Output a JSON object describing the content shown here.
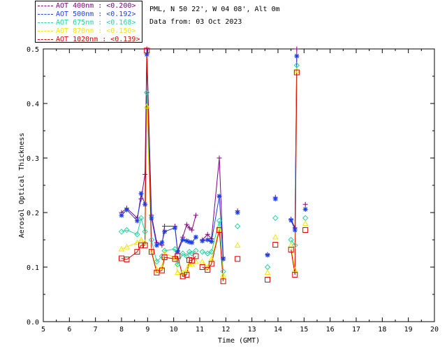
{
  "header": {
    "location": "PML, N 50 22', W 04 08', Alt 0m",
    "date_line": "Data from: 03 Oct 2023"
  },
  "legend": [
    {
      "label": "AOT  400nm : <0.200>",
      "color": "#800080"
    },
    {
      "label": "AOT  500nm : <0.192>",
      "color": "#1f3fe0"
    },
    {
      "label": "AOT  675nm : <0.168>",
      "color": "#22d4a0"
    },
    {
      "label": "AOT  870nm : <0.150>",
      "color": "#f2e600"
    },
    {
      "label": "AOT 1020nm : <0.139>",
      "color": "#e00000"
    }
  ],
  "chart_data": {
    "type": "line",
    "xlabel": "Time (GMT)",
    "ylabel": "Aerosol Optical Thickness",
    "xlim": [
      5,
      20
    ],
    "ylim": [
      0.0,
      0.5
    ],
    "xticks": [
      "5",
      "6",
      "7",
      "8",
      "9",
      "10",
      "11",
      "12",
      "13",
      "14",
      "15",
      "16",
      "17",
      "18",
      "19",
      "20"
    ],
    "yticks": [
      "0.0",
      "0.1",
      "0.2",
      "0.3",
      "0.4",
      "0.5"
    ],
    "grid": false,
    "legend_position": "top-left",
    "series": [
      {
        "name": "AOT  400nm : <0.200>",
        "marker": "plus",
        "color": "#800080",
        "segments": [
          [
            [
              8.0,
              0.2
            ],
            [
              8.2,
              0.208
            ],
            [
              8.6,
              0.19
            ],
            [
              8.75,
              0.225
            ],
            [
              8.9,
              0.27
            ],
            [
              8.97,
              0.5
            ],
            [
              9.15,
              0.195
            ],
            [
              9.35,
              0.145
            ],
            [
              9.55,
              0.14
            ],
            [
              9.65,
              0.175
            ],
            [
              10.05,
              0.175
            ],
            [
              10.15,
              0.13
            ],
            [
              10.35,
              0.155
            ],
            [
              10.5,
              0.178
            ],
            [
              10.6,
              0.172
            ],
            [
              10.7,
              0.168
            ],
            [
              10.85,
              0.195
            ]
          ],
          [
            [
              11.1,
              0.15
            ],
            [
              11.3,
              0.16
            ],
            [
              11.45,
              0.152
            ],
            [
              11.75,
              0.3
            ],
            [
              11.9,
              0.118
            ]
          ],
          [
            [
              12.45,
              0.203
            ]
          ],
          [
            [
              13.6,
              0.123
            ]
          ],
          [
            [
              13.9,
              0.228
            ]
          ],
          [
            [
              14.5,
              0.188
            ],
            [
              14.65,
              0.172
            ],
            [
              14.72,
              0.5
            ]
          ],
          [
            [
              15.05,
              0.215
            ]
          ]
        ]
      },
      {
        "name": "AOT  500nm : <0.192>",
        "marker": "star",
        "color": "#1f3fe0",
        "segments": [
          [
            [
              8.0,
              0.195
            ],
            [
              8.2,
              0.205
            ],
            [
              8.6,
              0.185
            ],
            [
              8.75,
              0.235
            ],
            [
              8.9,
              0.215
            ],
            [
              8.97,
              0.49
            ],
            [
              9.15,
              0.19
            ],
            [
              9.35,
              0.14
            ],
            [
              9.55,
              0.145
            ],
            [
              9.65,
              0.165
            ],
            [
              10.05,
              0.172
            ],
            [
              10.15,
              0.128
            ],
            [
              10.35,
              0.15
            ],
            [
              10.5,
              0.148
            ],
            [
              10.6,
              0.146
            ],
            [
              10.7,
              0.145
            ],
            [
              10.85,
              0.155
            ]
          ],
          [
            [
              11.1,
              0.148
            ],
            [
              11.3,
              0.15
            ],
            [
              11.45,
              0.147
            ],
            [
              11.75,
              0.23
            ],
            [
              11.9,
              0.115
            ]
          ],
          [
            [
              12.45,
              0.2
            ]
          ],
          [
            [
              13.6,
              0.122
            ]
          ],
          [
            [
              13.9,
              0.225
            ]
          ],
          [
            [
              14.5,
              0.186
            ],
            [
              14.65,
              0.168
            ],
            [
              14.72,
              0.487
            ]
          ],
          [
            [
              15.05,
              0.206
            ]
          ]
        ]
      },
      {
        "name": "AOT  675nm : <0.168>",
        "marker": "diamond",
        "color": "#22d4a0",
        "segments": [
          [
            [
              8.0,
              0.165
            ],
            [
              8.2,
              0.168
            ],
            [
              8.6,
              0.16
            ],
            [
              8.75,
              0.19
            ],
            [
              8.9,
              0.165
            ],
            [
              8.97,
              0.42
            ],
            [
              9.15,
              0.15
            ],
            [
              9.35,
              0.11
            ],
            [
              9.55,
              0.12
            ],
            [
              9.65,
              0.13
            ],
            [
              10.05,
              0.133
            ],
            [
              10.15,
              0.105
            ],
            [
              10.35,
              0.125
            ],
            [
              10.5,
              0.12
            ],
            [
              10.6,
              0.128
            ],
            [
              10.7,
              0.125
            ],
            [
              10.85,
              0.13
            ]
          ],
          [
            [
              11.1,
              0.128
            ],
            [
              11.3,
              0.125
            ],
            [
              11.45,
              0.128
            ],
            [
              11.75,
              0.185
            ],
            [
              11.9,
              0.092
            ]
          ],
          [
            [
              12.45,
              0.175
            ]
          ],
          [
            [
              13.6,
              0.1
            ]
          ],
          [
            [
              13.9,
              0.19
            ]
          ],
          [
            [
              14.5,
              0.15
            ],
            [
              14.65,
              0.14
            ],
            [
              14.72,
              0.47
            ]
          ],
          [
            [
              15.05,
              0.19
            ]
          ]
        ]
      },
      {
        "name": "AOT  870nm : <0.150>",
        "marker": "triangle",
        "color": "#f2e600",
        "segments": [
          [
            [
              8.0,
              0.133
            ],
            [
              8.2,
              0.137
            ],
            [
              8.6,
              0.145
            ],
            [
              8.75,
              0.15
            ],
            [
              8.9,
              0.145
            ],
            [
              8.97,
              0.395
            ],
            [
              9.15,
              0.13
            ],
            [
              9.35,
              0.095
            ],
            [
              9.55,
              0.1
            ],
            [
              9.65,
              0.125
            ],
            [
              10.05,
              0.118
            ],
            [
              10.15,
              0.09
            ],
            [
              10.35,
              0.09
            ],
            [
              10.5,
              0.095
            ],
            [
              10.6,
              0.105
            ],
            [
              10.7,
              0.105
            ],
            [
              10.85,
              0.11
            ]
          ],
          [
            [
              11.1,
              0.11
            ],
            [
              11.3,
              0.1
            ],
            [
              11.45,
              0.115
            ],
            [
              11.75,
              0.17
            ],
            [
              11.9,
              0.085
            ]
          ],
          [
            [
              12.45,
              0.14
            ]
          ],
          [
            [
              13.6,
              0.09
            ]
          ],
          [
            [
              13.9,
              0.155
            ]
          ],
          [
            [
              14.5,
              0.14
            ],
            [
              14.65,
              0.095
            ],
            [
              14.72,
              0.46
            ]
          ],
          [
            [
              15.05,
              0.18
            ]
          ]
        ]
      },
      {
        "name": "AOT 1020nm : <0.139>",
        "marker": "square",
        "color": "#e00000",
        "segments": [
          [
            [
              8.0,
              0.116
            ],
            [
              8.2,
              0.114
            ],
            [
              8.6,
              0.128
            ],
            [
              8.75,
              0.14
            ],
            [
              8.9,
              0.14
            ],
            [
              8.97,
              0.497
            ],
            [
              9.15,
              0.128
            ],
            [
              9.35,
              0.09
            ],
            [
              9.55,
              0.094
            ],
            [
              9.65,
              0.118
            ],
            [
              10.05,
              0.115
            ],
            [
              10.15,
              0.12
            ],
            [
              10.35,
              0.083
            ],
            [
              10.5,
              0.086
            ],
            [
              10.6,
              0.113
            ],
            [
              10.7,
              0.112
            ],
            [
              10.85,
              0.12
            ]
          ],
          [
            [
              11.1,
              0.1
            ],
            [
              11.3,
              0.095
            ],
            [
              11.45,
              0.106
            ],
            [
              11.75,
              0.168
            ],
            [
              11.9,
              0.074
            ]
          ],
          [
            [
              12.45,
              0.115
            ]
          ],
          [
            [
              13.6,
              0.077
            ]
          ],
          [
            [
              13.9,
              0.141
            ]
          ],
          [
            [
              14.5,
              0.132
            ],
            [
              14.65,
              0.086
            ],
            [
              14.72,
              0.457
            ]
          ],
          [
            [
              15.05,
              0.168
            ]
          ]
        ]
      }
    ]
  }
}
